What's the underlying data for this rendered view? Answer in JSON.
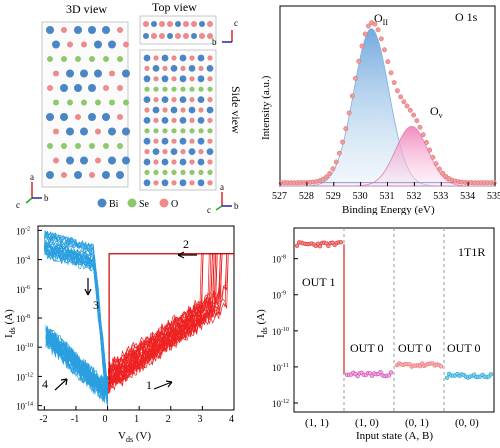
{
  "crystal": {
    "view_3d": "3D view",
    "view_top": "Top view",
    "view_side": "Side view",
    "axes_main": [
      "a",
      "c",
      "b"
    ],
    "axes_top": [
      "c",
      "b"
    ],
    "axes_side": [
      "a",
      "c",
      "b"
    ],
    "legend": [
      {
        "label": "Bi",
        "color": "#4a86c6"
      },
      {
        "label": "Se",
        "color": "#8fc86b"
      },
      {
        "label": "O",
        "color": "#ee8a8a"
      }
    ]
  },
  "xps": {
    "series_label": "O 1s",
    "peak_lattice": "O",
    "peak_lattice_sub": "II",
    "peak_vacancy": "O",
    "peak_vacancy_sub": "v",
    "xlabel": "Binding Energy (eV)",
    "ylabel": "Intensity (a.u.)",
    "xticks": [
      "527",
      "528",
      "529",
      "530",
      "531",
      "532",
      "533",
      "534",
      "535"
    ]
  },
  "iv": {
    "ylabel": "I",
    "ylabel_sub": "ds",
    "ylabel_unit": " (A)",
    "xlabel": "V",
    "xlabel_sub": "ds",
    "xlabel_unit": " (V)",
    "yticks": [
      "10",
      "10",
      "10",
      "10",
      "10",
      "10",
      "10"
    ],
    "yexp": [
      "-2",
      "-4",
      "-6",
      "-8",
      "-10",
      "-12",
      "-14"
    ],
    "xticks": [
      "-2",
      "-1",
      "0",
      "1",
      "2",
      "3",
      "4"
    ],
    "arrows": [
      "1",
      "2",
      "3",
      "4"
    ]
  },
  "logic": {
    "tag": "1T1R",
    "ylabel": "I",
    "ylabel_sub": "ds",
    "ylabel_unit": " (A)",
    "xlabel": "Input state (A, B)",
    "yticks": [
      "10",
      "10",
      "10",
      "10",
      "10"
    ],
    "yexp": [
      "-8",
      "-9",
      "-10",
      "-11",
      "-12"
    ],
    "states": [
      "(1, 1)",
      "(1, 0)",
      "(0, 1)",
      "(0, 0)"
    ],
    "outputs": [
      "OUT 1",
      "OUT 0",
      "OUT 0",
      "OUT 0"
    ]
  },
  "chart_data": [
    {
      "type": "line",
      "title": "O 1s",
      "xlabel": "Binding Energy (eV)",
      "ylabel": "Intensity (a.u.)",
      "xlim": [
        527,
        535
      ],
      "series": [
        {
          "name": "O",
          "x": [
            527,
            528,
            529,
            529.5,
            530,
            530.3,
            530.5,
            531,
            531.5,
            532,
            532.5,
            533,
            534,
            535
          ],
          "values": [
            0.02,
            0.04,
            0.18,
            0.55,
            0.92,
            1.0,
            0.96,
            0.62,
            0.42,
            0.4,
            0.28,
            0.12,
            0.04,
            0.02
          ]
        }
      ]
    },
    {
      "type": "line",
      "xlabel": "V",
      "ylabel": "I",
      "xlim": [
        -2,
        4
      ],
      "ylim": [
        "1e-14",
        "1e-2"
      ]
    },
    {
      "type": "scatter",
      "xlabel": "Input state (A, B)",
      "ylabel": "I",
      "categories": [
        "(1, 1)",
        "(1, 0)",
        "(0, 1)",
        "(0, 0)"
      ],
      "values": [
        "3e-8",
        "7e-12",
        "1.2e-11",
        "5e-12"
      ],
      "ylim": [
        "1e-12",
        "1e-7"
      ]
    }
  ]
}
